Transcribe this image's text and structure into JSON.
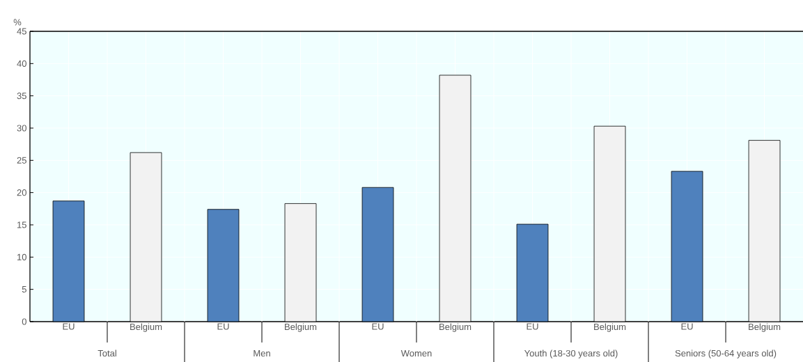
{
  "chart_data": {
    "type": "bar",
    "ylabel": "%",
    "categories": [
      "Total",
      "Men",
      "Women",
      "Youth (18-30 years old)",
      "Seniors (50-64 years old)"
    ],
    "series": [
      {
        "name": "EU",
        "color": "#4f81bd",
        "values": [
          18.7,
          17.4,
          20.8,
          15.1,
          23.3
        ]
      },
      {
        "name": "Belgium",
        "color": "#f2f2f2",
        "values": [
          26.2,
          18.3,
          38.2,
          30.3,
          28.1
        ]
      }
    ],
    "ylim": [
      0,
      45
    ],
    "yticks": [
      0,
      5,
      10,
      15,
      20,
      25,
      30,
      35,
      40,
      45
    ],
    "grid": true,
    "legend": false
  }
}
